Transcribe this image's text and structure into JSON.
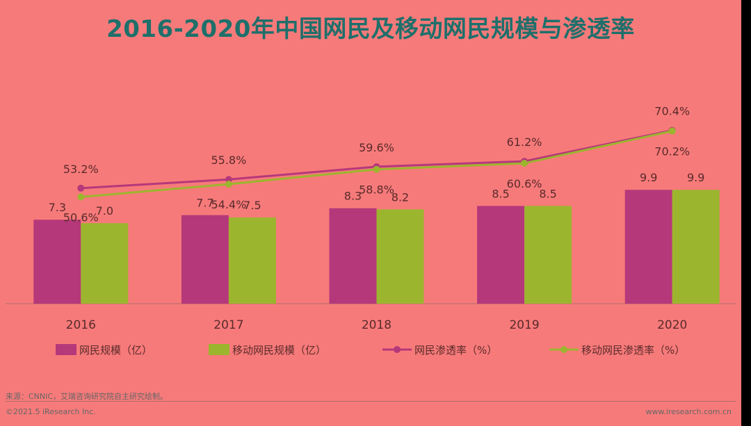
{
  "title": "2016-2020年中国网民及移动网民规模与渗透率",
  "footer": {
    "source": "来源：CNNIC，艾瑞咨询研究院自主研究绘制。",
    "copyright": "©2021.5 iResearch Inc.",
    "website": "www.iresearch.com.cn"
  },
  "colors": {
    "background": "#f77a7a",
    "title": "#1f6f6b",
    "netizen": "#b5387a",
    "mobile": "#9cb52e"
  },
  "chart_data": {
    "type": "bar",
    "categories": [
      "2016",
      "2017",
      "2018",
      "2019",
      "2020"
    ],
    "series": [
      {
        "name": "网民规模（亿）",
        "type": "bar",
        "values": [
          7.3,
          7.7,
          8.3,
          8.5,
          9.9
        ],
        "labels": [
          "7.3",
          "7.7",
          "8.3",
          "8.5",
          "9.9"
        ]
      },
      {
        "name": "移动网民规模（亿）",
        "type": "bar",
        "values": [
          7.0,
          7.5,
          8.2,
          8.5,
          9.9
        ],
        "labels": [
          "7.0",
          "7.5",
          "8.2",
          "8.5",
          "9.9"
        ]
      },
      {
        "name": "网民渗透率（%）",
        "type": "line",
        "values": [
          53.2,
          55.8,
          59.6,
          61.2,
          70.4
        ],
        "labels": [
          "53.2%",
          "55.8%",
          "59.6%",
          "61.2%",
          "70.4%"
        ]
      },
      {
        "name": "移动网民渗透率（%）",
        "type": "line",
        "values": [
          50.6,
          54.4,
          58.8,
          60.6,
          70.2
        ],
        "labels": [
          "50.6%",
          "54.4%",
          "58.8%",
          "60.6%",
          "70.2%"
        ]
      }
    ],
    "legend_position": "bottom",
    "grid": false
  }
}
